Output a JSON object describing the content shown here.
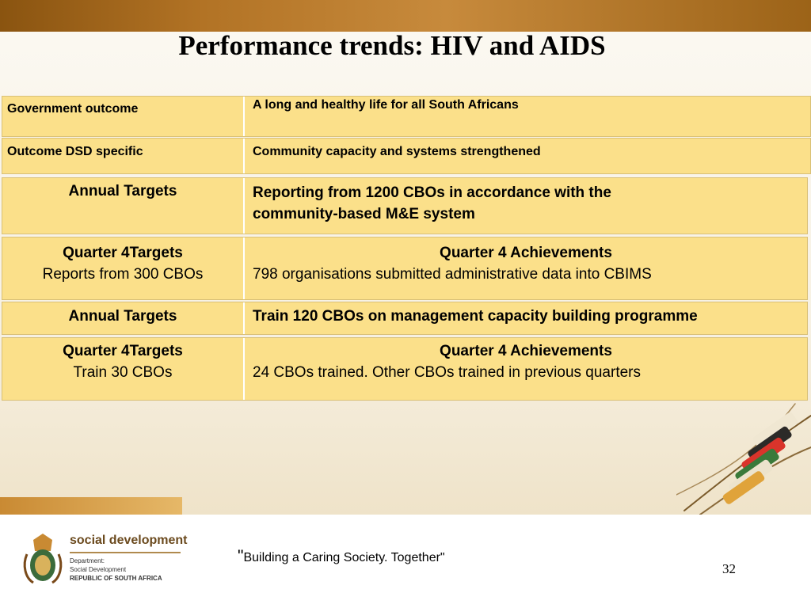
{
  "slide": {
    "title": "Performance trends:  HIV and AIDS",
    "page_number": "32"
  },
  "table": {
    "gov_outcome": {
      "label": "Government outcome",
      "value": "A long and healthy life for all South Africans"
    },
    "dsd_outcome": {
      "label": "Outcome DSD specific",
      "value": "Community capacity and systems strengthened"
    },
    "annual_1": {
      "label": "Annual Targets",
      "line1": "Reporting from 1200 CBOs in accordance with the",
      "line2": "community-based M&E system"
    },
    "q4_1": {
      "label": "Quarter 4Targets",
      "target": "Reports from 300 CBOs",
      "ach_label": "Quarter 4 Achievements",
      "ach_value": "798 organisations submitted administrative data into CBIMS"
    },
    "annual_2": {
      "label": "Annual Targets",
      "value": "Train 120 CBOs on management capacity building programme"
    },
    "q4_2": {
      "label": "Quarter 4Targets",
      "target": "Train 30 CBOs",
      "ach_label": "Quarter 4 Achievements",
      "ach_value": "24 CBOs trained. Other CBOs trained in previous quarters"
    }
  },
  "footer": {
    "logo_title": "social development",
    "dept_line1": "Department:",
    "dept_line2": "Social Development",
    "dept_line3": "REPUBLIC OF SOUTH AFRICA",
    "tagline_quote_open": "\"",
    "tagline_text": "Building a Caring Society. Together\""
  },
  "icons": {
    "emblem": "coat-of-arms-icon",
    "decoration": "beadwork-decoration"
  },
  "colors": {
    "row_fill": "#fbe08a",
    "header_band": "#b27325"
  }
}
